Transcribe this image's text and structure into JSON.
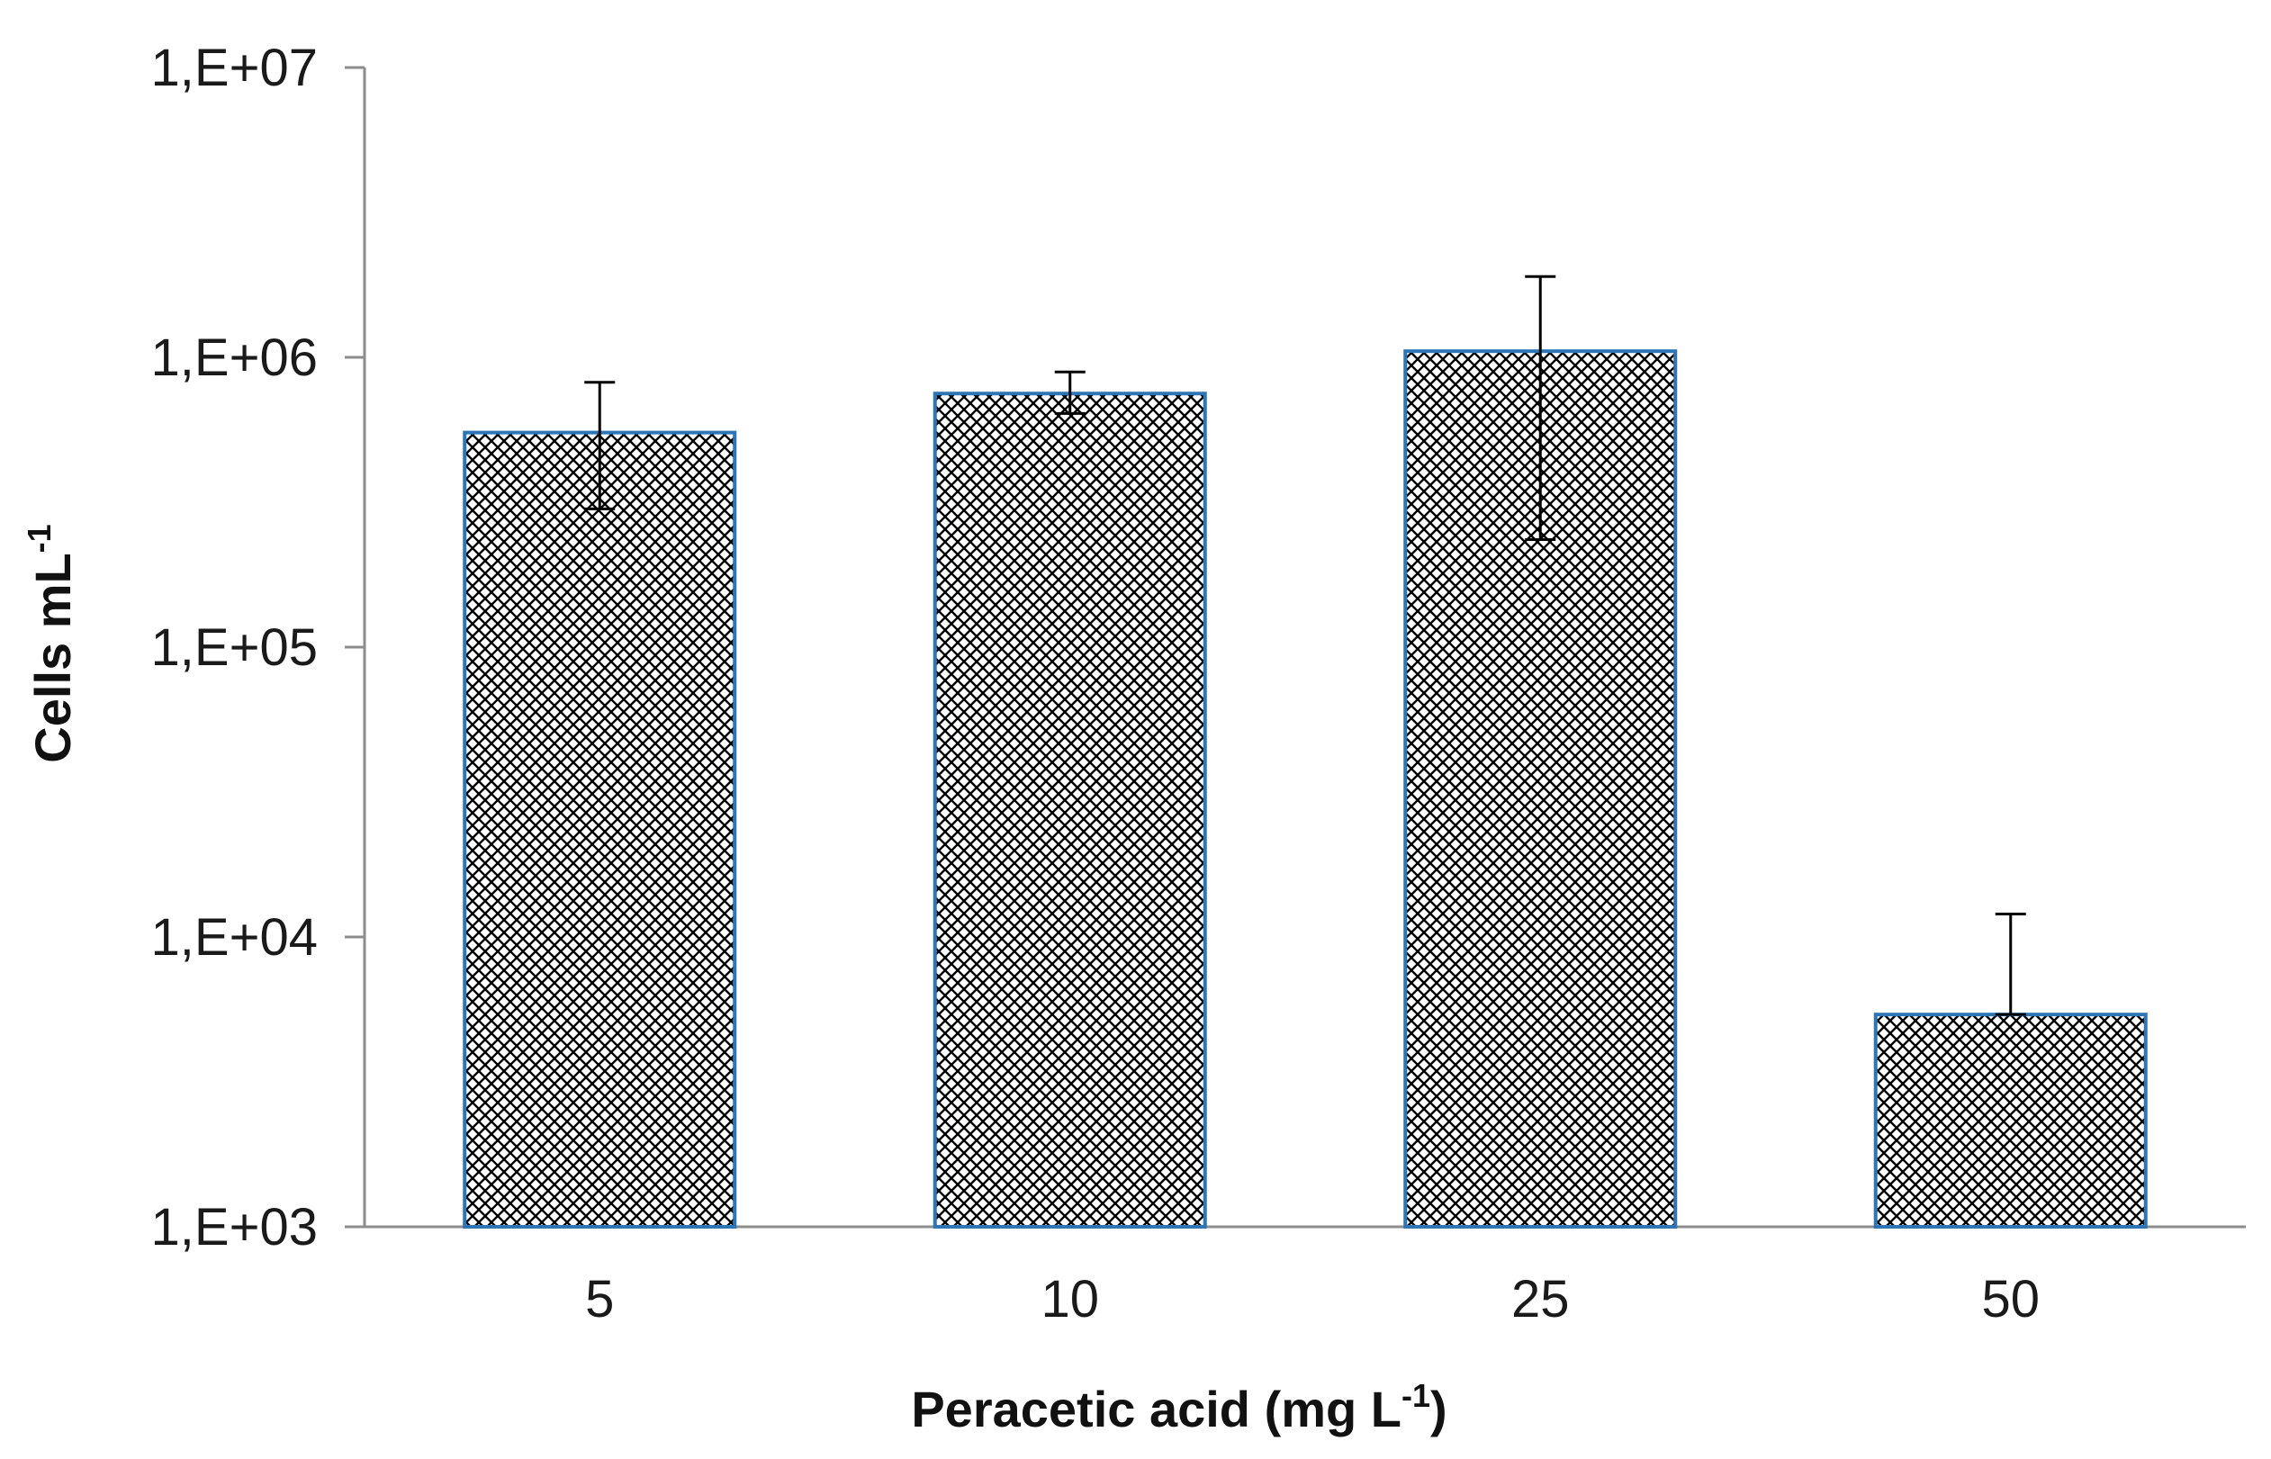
{
  "chart_data": {
    "type": "bar",
    "title": "",
    "xlabel_main": "Peracetic acid (mg L",
    "xlabel_sup": "-1",
    "xlabel_end": ")",
    "ylabel_main": "Cells mL",
    "ylabel_sup": "-1",
    "yscale": "log",
    "ylim": [
      1000,
      10000000
    ],
    "yticks": [
      1000,
      10000,
      100000,
      1000000,
      10000000
    ],
    "ytick_labels": [
      "1,E+03",
      "1,E+04",
      "1,E+05",
      "1,E+06",
      "1,E+07"
    ],
    "categories": [
      "5",
      "10",
      "25",
      "50"
    ],
    "values": [
      550000,
      750000,
      1050000,
      5400
    ],
    "error_upper": [
      820000,
      890000,
      1900000,
      12000
    ],
    "error_lower": [
      300000,
      640000,
      235000,
      5400
    ],
    "grid": false,
    "legend": false,
    "colors": {
      "bar_edge": "#2e75b6",
      "bar_pattern": "#000000",
      "bar_background": "#ffffff",
      "axis": "#8c8c8c",
      "error_bar": "#000000"
    }
  }
}
